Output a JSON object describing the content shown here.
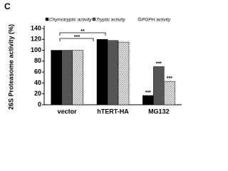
{
  "panel_label": "C",
  "chart_data": {
    "type": "bar",
    "y_label": "26S Proteasome activity (%)",
    "categories": [
      "vector",
      "hTERT-HA",
      "MG132"
    ],
    "series": [
      {
        "name": "Chymotryptic activity",
        "color": "#000000",
        "values": [
          100,
          120,
          17
        ]
      },
      {
        "name": "Tryptic activity",
        "color": "#555555",
        "values": [
          100,
          118,
          70
        ]
      },
      {
        "name": "PGPH activity",
        "color": "#d8d8d8",
        "values": [
          100,
          115,
          43
        ]
      }
    ],
    "ylim": [
      0,
      140
    ],
    "yticks": [
      0,
      20,
      40,
      60,
      80,
      100,
      120,
      140
    ],
    "annotations": [
      "**",
      "***",
      "***",
      "***",
      "***"
    ]
  }
}
